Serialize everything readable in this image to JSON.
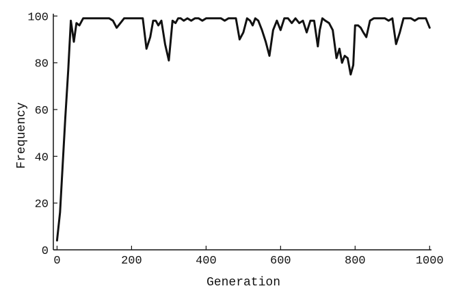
{
  "chart_data": {
    "type": "line",
    "title": "",
    "xlabel": "Generation",
    "ylabel": "Frequency",
    "xlim": [
      -10,
      1005
    ],
    "ylim": [
      0,
      101
    ],
    "xticks": [
      0,
      200,
      400,
      600,
      800,
      1000
    ],
    "yticks": [
      0,
      20,
      40,
      60,
      80,
      100
    ],
    "xtick_labels": [
      "0",
      "200",
      "400",
      "600",
      "800",
      "1000"
    ],
    "ytick_labels": [
      "0",
      "20",
      "40",
      "60",
      "80",
      "100"
    ],
    "grid": false,
    "legend": "none",
    "line_color": "#111111",
    "series": [
      {
        "x": [
          0,
          8,
          15,
          22,
          30,
          37,
          45,
          52,
          60,
          70,
          80,
          90,
          100,
          110,
          120,
          130,
          140,
          150,
          160,
          170,
          180,
          190,
          200,
          210,
          220,
          230,
          240,
          250,
          258,
          265,
          272,
          280,
          290,
          300,
          310,
          318,
          325,
          332,
          340,
          350,
          360,
          370,
          380,
          390,
          400,
          410,
          420,
          430,
          440,
          450,
          460,
          470,
          480,
          490,
          500,
          510,
          518,
          525,
          532,
          540,
          550,
          560,
          570,
          580,
          590,
          600,
          610,
          620,
          630,
          640,
          650,
          660,
          670,
          680,
          690,
          700,
          705,
          712,
          720,
          730,
          740,
          750,
          758,
          765,
          772,
          780,
          788,
          795,
          800,
          808,
          815,
          822,
          830,
          840,
          850,
          860,
          870,
          880,
          890,
          900,
          910,
          920,
          930,
          940,
          950,
          960,
          970,
          980,
          990,
          1000
        ],
        "y": [
          4,
          16,
          36,
          56,
          77,
          98,
          89,
          97,
          96,
          99,
          99,
          99,
          99,
          99,
          99,
          99,
          99,
          98,
          95,
          97,
          99,
          99,
          99,
          99,
          99,
          99,
          86,
          91,
          98,
          98,
          96,
          98,
          88,
          81,
          98,
          97,
          99,
          99,
          98,
          99,
          98,
          99,
          99,
          98,
          99,
          99,
          99,
          99,
          99,
          98,
          99,
          99,
          99,
          90,
          93,
          99,
          98,
          96,
          99,
          98,
          94,
          89,
          83,
          94,
          98,
          94,
          99,
          99,
          97,
          99,
          97,
          98,
          93,
          98,
          98,
          87,
          94,
          99,
          98,
          97,
          94,
          82,
          86,
          80,
          83,
          82,
          75,
          79,
          96,
          96,
          95,
          93,
          91,
          98,
          99,
          99,
          99,
          99,
          98,
          99,
          88,
          93,
          99,
          99,
          99,
          98,
          99,
          99,
          99,
          95
        ]
      }
    ]
  }
}
